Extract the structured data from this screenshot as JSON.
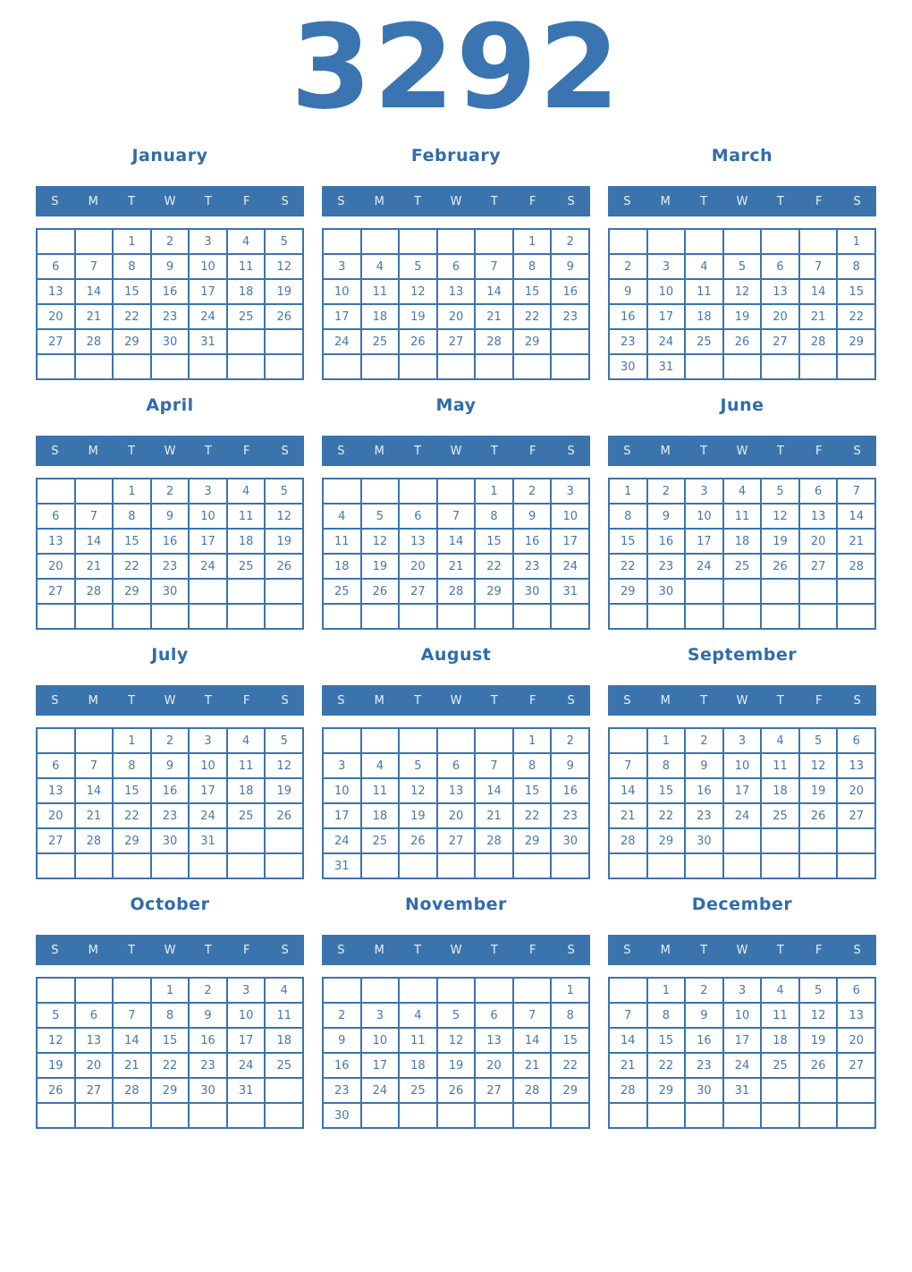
{
  "page": {
    "year": "3292"
  },
  "colors": {
    "header_bg": "#3b74ad",
    "header_text": "#e9eff6",
    "border": "#3b74ad",
    "day_text": "#4678ab",
    "month_title": "#306cac",
    "year_text": "#3a75b1",
    "page_bg": "#ffffff"
  },
  "weekday_labels": [
    "S",
    "M",
    "T",
    "W",
    "T",
    "F",
    "S"
  ],
  "months": [
    {
      "name": "January",
      "weeks": [
        [
          "",
          "",
          "1",
          "2",
          "3",
          "4",
          "5"
        ],
        [
          "6",
          "7",
          "8",
          "9",
          "10",
          "11",
          "12"
        ],
        [
          "13",
          "14",
          "15",
          "16",
          "17",
          "18",
          "19"
        ],
        [
          "20",
          "21",
          "22",
          "23",
          "24",
          "25",
          "26"
        ],
        [
          "27",
          "28",
          "29",
          "30",
          "31",
          "",
          ""
        ],
        [
          "",
          "",
          "",
          "",
          "",
          "",
          ""
        ]
      ]
    },
    {
      "name": "February",
      "weeks": [
        [
          "",
          "",
          "",
          "",
          "",
          "1",
          "2"
        ],
        [
          "3",
          "4",
          "5",
          "6",
          "7",
          "8",
          "9"
        ],
        [
          "10",
          "11",
          "12",
          "13",
          "14",
          "15",
          "16"
        ],
        [
          "17",
          "18",
          "19",
          "20",
          "21",
          "22",
          "23"
        ],
        [
          "24",
          "25",
          "26",
          "27",
          "28",
          "29",
          ""
        ],
        [
          "",
          "",
          "",
          "",
          "",
          "",
          ""
        ]
      ]
    },
    {
      "name": "March",
      "weeks": [
        [
          "",
          "",
          "",
          "",
          "",
          "",
          "1"
        ],
        [
          "2",
          "3",
          "4",
          "5",
          "6",
          "7",
          "8"
        ],
        [
          "9",
          "10",
          "11",
          "12",
          "13",
          "14",
          "15"
        ],
        [
          "16",
          "17",
          "18",
          "19",
          "20",
          "21",
          "22"
        ],
        [
          "23",
          "24",
          "25",
          "26",
          "27",
          "28",
          "29"
        ],
        [
          "30",
          "31",
          "",
          "",
          "",
          "",
          ""
        ]
      ]
    },
    {
      "name": "April",
      "weeks": [
        [
          "",
          "",
          "1",
          "2",
          "3",
          "4",
          "5"
        ],
        [
          "6",
          "7",
          "8",
          "9",
          "10",
          "11",
          "12"
        ],
        [
          "13",
          "14",
          "15",
          "16",
          "17",
          "18",
          "19"
        ],
        [
          "20",
          "21",
          "22",
          "23",
          "24",
          "25",
          "26"
        ],
        [
          "27",
          "28",
          "29",
          "30",
          "",
          "",
          ""
        ],
        [
          "",
          "",
          "",
          "",
          "",
          "",
          ""
        ]
      ]
    },
    {
      "name": "May",
      "weeks": [
        [
          "",
          "",
          "",
          "",
          "1",
          "2",
          "3"
        ],
        [
          "4",
          "5",
          "6",
          "7",
          "8",
          "9",
          "10"
        ],
        [
          "11",
          "12",
          "13",
          "14",
          "15",
          "16",
          "17"
        ],
        [
          "18",
          "19",
          "20",
          "21",
          "22",
          "23",
          "24"
        ],
        [
          "25",
          "26",
          "27",
          "28",
          "29",
          "30",
          "31"
        ],
        [
          "",
          "",
          "",
          "",
          "",
          "",
          ""
        ]
      ]
    },
    {
      "name": "June",
      "weeks": [
        [
          "1",
          "2",
          "3",
          "4",
          "5",
          "6",
          "7"
        ],
        [
          "8",
          "9",
          "10",
          "11",
          "12",
          "13",
          "14"
        ],
        [
          "15",
          "16",
          "17",
          "18",
          "19",
          "20",
          "21"
        ],
        [
          "22",
          "23",
          "24",
          "25",
          "26",
          "27",
          "28"
        ],
        [
          "29",
          "30",
          "",
          "",
          "",
          "",
          ""
        ],
        [
          "",
          "",
          "",
          "",
          "",
          "",
          ""
        ]
      ]
    },
    {
      "name": "July",
      "weeks": [
        [
          "",
          "",
          "1",
          "2",
          "3",
          "4",
          "5"
        ],
        [
          "6",
          "7",
          "8",
          "9",
          "10",
          "11",
          "12"
        ],
        [
          "13",
          "14",
          "15",
          "16",
          "17",
          "18",
          "19"
        ],
        [
          "20",
          "21",
          "22",
          "23",
          "24",
          "25",
          "26"
        ],
        [
          "27",
          "28",
          "29",
          "30",
          "31",
          "",
          ""
        ],
        [
          "",
          "",
          "",
          "",
          "",
          "",
          ""
        ]
      ]
    },
    {
      "name": "August",
      "weeks": [
        [
          "",
          "",
          "",
          "",
          "",
          "1",
          "2"
        ],
        [
          "3",
          "4",
          "5",
          "6",
          "7",
          "8",
          "9"
        ],
        [
          "10",
          "11",
          "12",
          "13",
          "14",
          "15",
          "16"
        ],
        [
          "17",
          "18",
          "19",
          "20",
          "21",
          "22",
          "23"
        ],
        [
          "24",
          "25",
          "26",
          "27",
          "28",
          "29",
          "30"
        ],
        [
          "31",
          "",
          "",
          "",
          "",
          "",
          ""
        ]
      ]
    },
    {
      "name": "September",
      "weeks": [
        [
          "",
          "1",
          "2",
          "3",
          "4",
          "5",
          "6"
        ],
        [
          "7",
          "8",
          "9",
          "10",
          "11",
          "12",
          "13"
        ],
        [
          "14",
          "15",
          "16",
          "17",
          "18",
          "19",
          "20"
        ],
        [
          "21",
          "22",
          "23",
          "24",
          "25",
          "26",
          "27"
        ],
        [
          "28",
          "29",
          "30",
          "",
          "",
          "",
          ""
        ],
        [
          "",
          "",
          "",
          "",
          "",
          "",
          ""
        ]
      ]
    },
    {
      "name": "October",
      "weeks": [
        [
          "",
          "",
          "",
          "1",
          "2",
          "3",
          "4"
        ],
        [
          "5",
          "6",
          "7",
          "8",
          "9",
          "10",
          "11"
        ],
        [
          "12",
          "13",
          "14",
          "15",
          "16",
          "17",
          "18"
        ],
        [
          "19",
          "20",
          "21",
          "22",
          "23",
          "24",
          "25"
        ],
        [
          "26",
          "27",
          "28",
          "29",
          "30",
          "31",
          ""
        ],
        [
          "",
          "",
          "",
          "",
          "",
          "",
          ""
        ]
      ]
    },
    {
      "name": "November",
      "weeks": [
        [
          "",
          "",
          "",
          "",
          "",
          "",
          "1"
        ],
        [
          "2",
          "3",
          "4",
          "5",
          "6",
          "7",
          "8"
        ],
        [
          "9",
          "10",
          "11",
          "12",
          "13",
          "14",
          "15"
        ],
        [
          "16",
          "17",
          "18",
          "19",
          "20",
          "21",
          "22"
        ],
        [
          "23",
          "24",
          "25",
          "26",
          "27",
          "28",
          "29"
        ],
        [
          "30",
          "",
          "",
          "",
          "",
          "",
          ""
        ]
      ]
    },
    {
      "name": "December",
      "weeks": [
        [
          "",
          "1",
          "2",
          "3",
          "4",
          "5",
          "6"
        ],
        [
          "7",
          "8",
          "9",
          "10",
          "11",
          "12",
          "13"
        ],
        [
          "14",
          "15",
          "16",
          "17",
          "18",
          "19",
          "20"
        ],
        [
          "21",
          "22",
          "23",
          "24",
          "25",
          "26",
          "27"
        ],
        [
          "28",
          "29",
          "30",
          "31",
          "",
          "",
          ""
        ],
        [
          "",
          "",
          "",
          "",
          "",
          "",
          ""
        ]
      ]
    }
  ]
}
